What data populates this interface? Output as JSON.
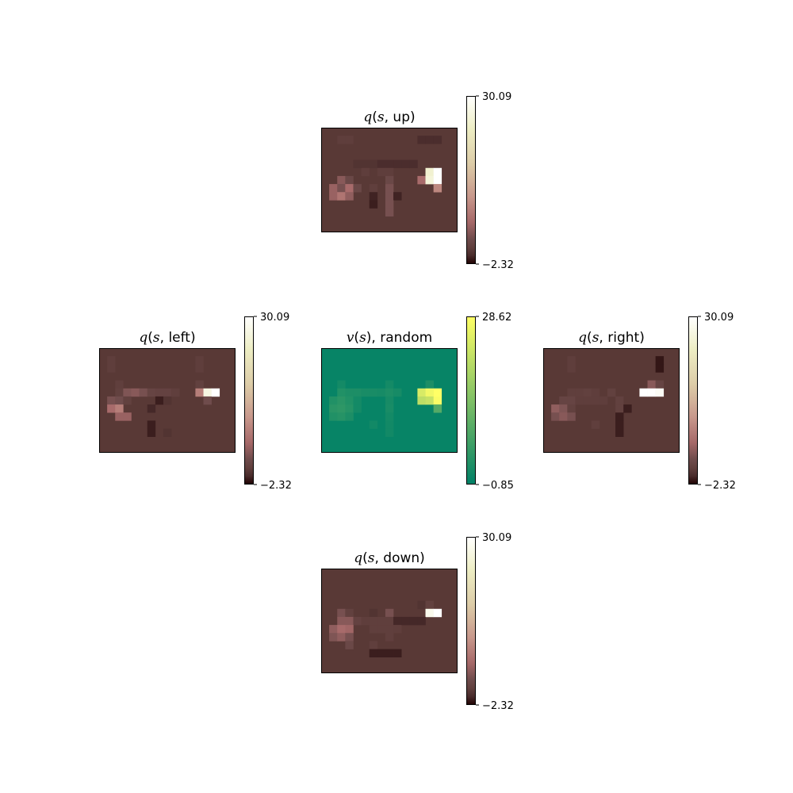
{
  "chart_data": [
    {
      "type": "heatmap",
      "title": {
        "fn": "q",
        "var": "s",
        "action": "up"
      },
      "colormap": "pink",
      "colorbar": {
        "min": -2.32,
        "max": 30.09,
        "min_label": "−2.32",
        "max_label": "30.09"
      },
      "grid_rows": 13,
      "grid_cols": 17,
      "background_value": 0.0,
      "cells": [
        [
          1,
          2,
          0.6
        ],
        [
          1,
          3,
          0.6
        ],
        [
          1,
          12,
          -0.6
        ],
        [
          1,
          13,
          -0.6
        ],
        [
          1,
          14,
          -0.6
        ],
        [
          4,
          4,
          -0.3
        ],
        [
          4,
          5,
          -0.3
        ],
        [
          4,
          6,
          -0.3
        ],
        [
          4,
          7,
          -0.6
        ],
        [
          4,
          8,
          -0.6
        ],
        [
          4,
          9,
          -0.6
        ],
        [
          4,
          10,
          -0.6
        ],
        [
          4,
          11,
          -0.6
        ],
        [
          5,
          5,
          0.6
        ],
        [
          5,
          7,
          0.6
        ],
        [
          5,
          8,
          0.6
        ],
        [
          5,
          13,
          25.0
        ],
        [
          5,
          14,
          30.09
        ],
        [
          6,
          2,
          4.0
        ],
        [
          6,
          3,
          2.0
        ],
        [
          6,
          8,
          2.0
        ],
        [
          6,
          12,
          6.0
        ],
        [
          6,
          13,
          26.0
        ],
        [
          6,
          14,
          30.0
        ],
        [
          7,
          1,
          5.0
        ],
        [
          7,
          2,
          3.0
        ],
        [
          7,
          3,
          6.0
        ],
        [
          7,
          4,
          2.0
        ],
        [
          7,
          6,
          0.8
        ],
        [
          7,
          8,
          3.0
        ],
        [
          7,
          14,
          9.0
        ],
        [
          8,
          1,
          5.0
        ],
        [
          8,
          2,
          7.0
        ],
        [
          8,
          3,
          4.5
        ],
        [
          8,
          6,
          -1.0
        ],
        [
          8,
          8,
          3.0
        ],
        [
          8,
          9,
          -1.0
        ],
        [
          9,
          6,
          -1.2
        ],
        [
          9,
          8,
          3.0
        ],
        [
          10,
          8,
          3.0
        ]
      ]
    },
    {
      "type": "heatmap",
      "title": {
        "fn": "q",
        "var": "s",
        "action": "left"
      },
      "colormap": "pink",
      "colorbar": {
        "min": -2.32,
        "max": 30.09,
        "min_label": "−2.32",
        "max_label": "30.09"
      },
      "grid_rows": 13,
      "grid_cols": 17,
      "background_value": 0.0,
      "cells": [
        [
          1,
          1,
          0.6
        ],
        [
          1,
          12,
          0.6
        ],
        [
          2,
          1,
          0.6
        ],
        [
          2,
          12,
          0.6
        ],
        [
          4,
          2,
          0.8
        ],
        [
          4,
          12,
          1.0
        ],
        [
          5,
          2,
          1.0
        ],
        [
          5,
          3,
          3.5
        ],
        [
          5,
          4,
          4.0
        ],
        [
          5,
          5,
          3.0
        ],
        [
          5,
          6,
          1.5
        ],
        [
          5,
          7,
          1.2
        ],
        [
          5,
          8,
          1.2
        ],
        [
          5,
          9,
          0.8
        ],
        [
          5,
          12,
          8.0
        ],
        [
          5,
          13,
          27.0
        ],
        [
          5,
          14,
          30.09
        ],
        [
          6,
          1,
          3.0
        ],
        [
          6,
          2,
          2.5
        ],
        [
          6,
          3,
          1.0
        ],
        [
          6,
          7,
          -1.2
        ],
        [
          6,
          8,
          -0.3
        ],
        [
          6,
          13,
          2.5
        ],
        [
          7,
          1,
          6.0
        ],
        [
          7,
          2,
          8.0
        ],
        [
          7,
          6,
          -0.8
        ],
        [
          8,
          2,
          5.0
        ],
        [
          8,
          3,
          5.0
        ],
        [
          9,
          6,
          -1.2
        ],
        [
          10,
          6,
          -1.2
        ],
        [
          10,
          8,
          -0.3
        ]
      ]
    },
    {
      "type": "heatmap",
      "title": {
        "fn": "v",
        "var": "s",
        "action": "random"
      },
      "colormap": "summer",
      "colorbar": {
        "min": -0.85,
        "max": 28.62,
        "min_label": "−0.85",
        "max_label": "28.62"
      },
      "grid_rows": 13,
      "grid_cols": 17,
      "background_value": 0.0,
      "cells": [
        [
          4,
          2,
          1.5
        ],
        [
          4,
          8,
          1.5
        ],
        [
          4,
          13,
          2.5
        ],
        [
          5,
          2,
          3.0
        ],
        [
          5,
          3,
          2.5
        ],
        [
          5,
          4,
          2.5
        ],
        [
          5,
          5,
          2.0
        ],
        [
          5,
          6,
          2.0
        ],
        [
          5,
          7,
          1.8
        ],
        [
          5,
          8,
          2.5
        ],
        [
          5,
          9,
          1.8
        ],
        [
          5,
          12,
          24.0
        ],
        [
          5,
          13,
          27.0
        ],
        [
          5,
          14,
          28.62
        ],
        [
          6,
          1,
          3.0
        ],
        [
          6,
          2,
          4.0
        ],
        [
          6,
          3,
          3.0
        ],
        [
          6,
          4,
          1.5
        ],
        [
          6,
          8,
          1.8
        ],
        [
          6,
          12,
          21.0
        ],
        [
          6,
          13,
          22.0
        ],
        [
          6,
          14,
          28.0
        ],
        [
          7,
          1,
          4.0
        ],
        [
          7,
          2,
          4.5
        ],
        [
          7,
          3,
          3.5
        ],
        [
          7,
          4,
          1.5
        ],
        [
          7,
          8,
          2.0
        ],
        [
          7,
          14,
          9.0
        ],
        [
          8,
          1,
          3.0
        ],
        [
          8,
          2,
          3.5
        ],
        [
          8,
          3,
          2.5
        ],
        [
          8,
          8,
          1.5
        ],
        [
          9,
          6,
          1.2
        ],
        [
          9,
          8,
          1.2
        ],
        [
          10,
          8,
          1.2
        ]
      ]
    },
    {
      "type": "heatmap",
      "title": {
        "fn": "q",
        "var": "s",
        "action": "right"
      },
      "colormap": "pink",
      "colorbar": {
        "min": -2.32,
        "max": 30.09,
        "min_label": "−2.32",
        "max_label": "30.09"
      },
      "grid_rows": 13,
      "grid_cols": 17,
      "background_value": 0.0,
      "cells": [
        [
          1,
          3,
          0.6
        ],
        [
          1,
          14,
          -1.5
        ],
        [
          2,
          3,
          0.6
        ],
        [
          2,
          14,
          -1.5
        ],
        [
          4,
          13,
          4.0
        ],
        [
          4,
          14,
          1.5
        ],
        [
          5,
          3,
          0.8
        ],
        [
          5,
          4,
          0.8
        ],
        [
          5,
          5,
          1.0
        ],
        [
          5,
          6,
          0.6
        ],
        [
          5,
          8,
          1.0
        ],
        [
          5,
          12,
          30.09
        ],
        [
          5,
          13,
          30.0
        ],
        [
          5,
          14,
          29.0
        ],
        [
          6,
          2,
          1.5
        ],
        [
          6,
          3,
          1.5
        ],
        [
          6,
          4,
          0.6
        ],
        [
          6,
          5,
          0.6
        ],
        [
          6,
          6,
          0.6
        ],
        [
          6,
          7,
          0.6
        ],
        [
          6,
          9,
          1.0
        ],
        [
          7,
          1,
          4.5
        ],
        [
          7,
          2,
          3.5
        ],
        [
          7,
          3,
          1.0
        ],
        [
          7,
          9,
          1.0
        ],
        [
          7,
          10,
          -1.2
        ],
        [
          8,
          1,
          3.0
        ],
        [
          8,
          2,
          4.0
        ],
        [
          8,
          3,
          3.0
        ],
        [
          8,
          9,
          -1.2
        ],
        [
          9,
          6,
          0.8
        ],
        [
          9,
          9,
          -1.2
        ],
        [
          10,
          9,
          -1.2
        ]
      ]
    },
    {
      "type": "heatmap",
      "title": {
        "fn": "q",
        "var": "s",
        "action": "down"
      },
      "colormap": "pink",
      "colorbar": {
        "min": -2.32,
        "max": 30.09,
        "min_label": "−2.32",
        "max_label": "30.09"
      },
      "grid_rows": 13,
      "grid_cols": 17,
      "background_value": 0.0,
      "cells": [
        [
          4,
          12,
          -0.3
        ],
        [
          4,
          13,
          1.0
        ],
        [
          5,
          2,
          3.0
        ],
        [
          5,
          3,
          1.0
        ],
        [
          5,
          6,
          -0.3
        ],
        [
          5,
          8,
          3.0
        ],
        [
          5,
          13,
          28.0
        ],
        [
          5,
          14,
          30.09
        ],
        [
          6,
          2,
          4.0
        ],
        [
          6,
          3,
          4.0
        ],
        [
          6,
          4,
          1.2
        ],
        [
          6,
          5,
          0.6
        ],
        [
          6,
          6,
          0.8
        ],
        [
          6,
          7,
          0.8
        ],
        [
          6,
          8,
          0.8
        ],
        [
          6,
          9,
          -0.8
        ],
        [
          6,
          10,
          -0.8
        ],
        [
          6,
          11,
          -0.8
        ],
        [
          6,
          12,
          -0.8
        ],
        [
          7,
          1,
          4.5
        ],
        [
          7,
          2,
          6.0
        ],
        [
          7,
          3,
          5.5
        ],
        [
          7,
          6,
          0.8
        ],
        [
          7,
          7,
          0.8
        ],
        [
          7,
          8,
          0.8
        ],
        [
          7,
          9,
          0.6
        ],
        [
          8,
          1,
          3.5
        ],
        [
          8,
          2,
          4.5
        ],
        [
          8,
          3,
          3.0
        ],
        [
          8,
          8,
          0.8
        ],
        [
          9,
          3,
          2.0
        ],
        [
          9,
          6,
          0.8
        ],
        [
          10,
          6,
          -1.2
        ],
        [
          10,
          7,
          -1.2
        ],
        [
          10,
          8,
          -1.2
        ],
        [
          10,
          9,
          -1.2
        ]
      ]
    }
  ]
}
